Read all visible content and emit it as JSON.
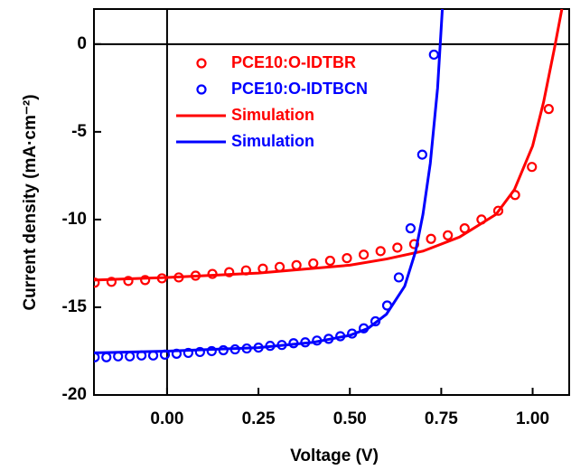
{
  "chart_data": {
    "type": "line",
    "x_label": "Voltage (V)",
    "y_label": "Current density (mA·cm⁻²)",
    "xlim": [
      -0.2,
      1.1
    ],
    "ylim": [
      -20,
      2
    ],
    "xticks": [
      {
        "value": 0,
        "label": "0.00"
      },
      {
        "value": 0.25,
        "label": "0.25"
      },
      {
        "value": 0.5,
        "label": "0.50"
      },
      {
        "value": 0.75,
        "label": "0.75"
      },
      {
        "value": 1,
        "label": "1.00"
      }
    ],
    "yticks": [
      -20,
      -15,
      -10,
      -5,
      0
    ],
    "legend": "upper left",
    "series": [
      {
        "name": "PCE10:O-IDTBR",
        "type": "scatter",
        "color": "#ff0000",
        "x": [
          -0.198,
          -0.152,
          -0.106,
          -0.06,
          -0.014,
          0.032,
          0.078,
          0.124,
          0.17,
          0.216,
          0.262,
          0.308,
          0.354,
          0.4,
          0.446,
          0.492,
          0.538,
          0.584,
          0.63,
          0.676,
          0.722,
          0.768,
          0.814,
          0.86,
          0.906,
          0.952,
          0.998,
          1.044
        ],
        "values": [
          -13.6,
          -13.55,
          -13.5,
          -13.45,
          -13.35,
          -13.3,
          -13.2,
          -13.1,
          -13.0,
          -12.9,
          -12.8,
          -12.7,
          -12.6,
          -12.5,
          -12.35,
          -12.2,
          -12.0,
          -11.8,
          -11.6,
          -11.4,
          -11.1,
          -10.9,
          -10.5,
          -10.0,
          -9.5,
          -8.6,
          -7.0,
          -3.7
        ]
      },
      {
        "name": "PCE10:O-IDTBCN",
        "type": "scatter",
        "color": "#0000ff",
        "x": [
          -0.198,
          -0.166,
          -0.134,
          -0.102,
          -0.07,
          -0.038,
          -0.006,
          0.026,
          0.058,
          0.09,
          0.122,
          0.154,
          0.186,
          0.218,
          0.25,
          0.282,
          0.314,
          0.346,
          0.378,
          0.41,
          0.442,
          0.474,
          0.506,
          0.538,
          0.57,
          0.602,
          0.634,
          0.666,
          0.698,
          0.73
        ],
        "values": [
          -17.85,
          -17.85,
          -17.8,
          -17.8,
          -17.75,
          -17.75,
          -17.7,
          -17.65,
          -17.6,
          -17.55,
          -17.5,
          -17.45,
          -17.4,
          -17.35,
          -17.3,
          -17.2,
          -17.15,
          -17.05,
          -17.0,
          -16.9,
          -16.8,
          -16.65,
          -16.5,
          -16.2,
          -15.8,
          -14.9,
          -13.3,
          -10.5,
          -6.3,
          -0.6
        ]
      },
      {
        "name": "Simulation",
        "type": "line",
        "color": "#ff0000",
        "x": [
          -0.2,
          0,
          0.25,
          0.5,
          0.6,
          0.7,
          0.8,
          0.9,
          0.95,
          1.0,
          1.03,
          1.06,
          1.08
        ],
        "values": [
          -13.45,
          -13.3,
          -13.05,
          -12.6,
          -12.25,
          -11.8,
          -11.0,
          -9.7,
          -8.3,
          -5.8,
          -3.3,
          -0.2,
          2.0
        ]
      },
      {
        "name": "Simulation",
        "type": "line",
        "color": "#0000ff",
        "x": [
          -0.2,
          0,
          0.25,
          0.4,
          0.5,
          0.55,
          0.6,
          0.65,
          0.68,
          0.7,
          0.72,
          0.74,
          0.753
        ],
        "values": [
          -17.6,
          -17.5,
          -17.3,
          -17.0,
          -16.6,
          -16.2,
          -15.4,
          -13.8,
          -11.8,
          -9.7,
          -6.8,
          -2.5,
          2.0
        ]
      }
    ]
  }
}
